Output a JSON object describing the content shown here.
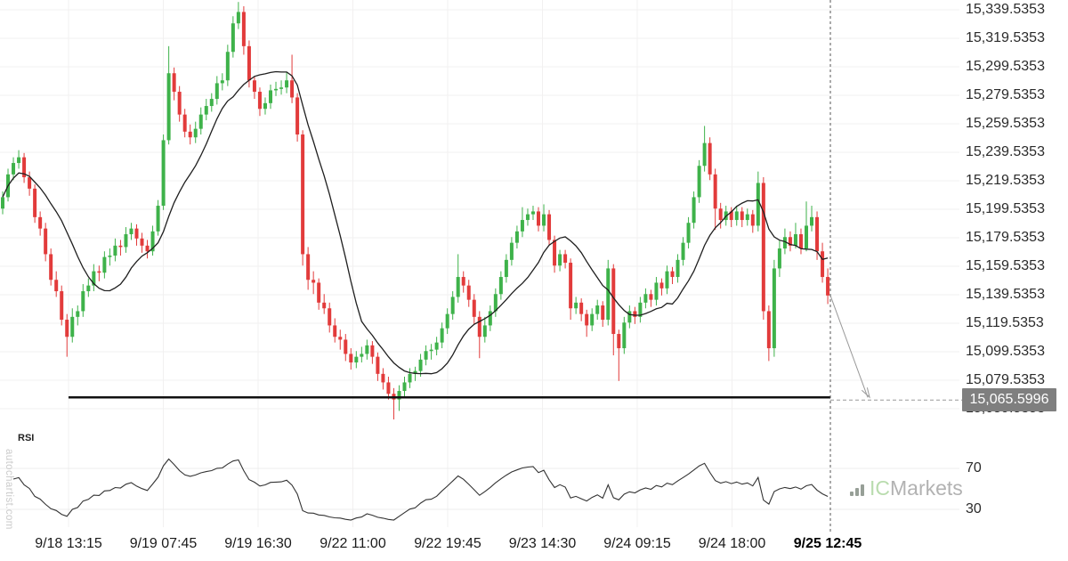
{
  "watermark": "autochartist.com",
  "brand": {
    "icon": "bar-chart-icon",
    "ic": "IC",
    "markets": "Markets"
  },
  "chart_data": {
    "type": "candlestick",
    "panels": [
      "price",
      "RSI"
    ],
    "y_axis": {
      "labels": [
        "15,339.5353",
        "15,319.5353",
        "15,299.5353",
        "15,279.5353",
        "15,259.5353",
        "15,239.5353",
        "15,219.5353",
        "15,199.5353",
        "15,179.5353",
        "15,159.5353",
        "15,139.5353",
        "15,119.5353",
        "15,099.5353",
        "15,079.5353",
        "15,059.5353"
      ],
      "top_value": 15339.5353,
      "step": 20
    },
    "x_axis": {
      "labels": [
        "9/18 13:15",
        "9/19 07:45",
        "9/19 16:30",
        "9/22 11:00",
        "9/22 19:45",
        "9/23 14:30",
        "9/24 09:15",
        "9/24 18:00",
        "9/25 12:45"
      ],
      "emphasized": "9/25 12:45"
    },
    "candles": [
      [
        15200,
        15212,
        15196,
        15208
      ],
      [
        15208,
        15228,
        15205,
        15224
      ],
      [
        15224,
        15236,
        15220,
        15232
      ],
      [
        15232,
        15241,
        15228,
        15236
      ],
      [
        15236,
        15239,
        15218,
        15222
      ],
      [
        15222,
        15226,
        15209,
        15214
      ],
      [
        15214,
        15217,
        15190,
        15194
      ],
      [
        15194,
        15198,
        15181,
        15186
      ],
      [
        15186,
        15190,
        15163,
        15168
      ],
      [
        15168,
        15172,
        15146,
        15150
      ],
      [
        15150,
        15156,
        15138,
        15142
      ],
      [
        15142,
        15146,
        15118,
        15122
      ],
      [
        15122,
        15126,
        15096,
        15110
      ],
      [
        15110,
        15130,
        15106,
        15124
      ],
      [
        15124,
        15132,
        15118,
        15128
      ],
      [
        15128,
        15147,
        15124,
        15142
      ],
      [
        15142,
        15151,
        15138,
        15146
      ],
      [
        15146,
        15161,
        15142,
        15156
      ],
      [
        15156,
        15160,
        15149,
        15155
      ],
      [
        15155,
        15170,
        15151,
        15166
      ],
      [
        15166,
        15172,
        15160,
        15167
      ],
      [
        15167,
        15179,
        15163,
        15174
      ],
      [
        15174,
        15178,
        15167,
        15173
      ],
      [
        15173,
        15187,
        15169,
        15182
      ],
      [
        15182,
        15190,
        15178,
        15186
      ],
      [
        15186,
        15189,
        15174,
        15179
      ],
      [
        15179,
        15183,
        15169,
        15174
      ],
      [
        15174,
        15178,
        15165,
        15170
      ],
      [
        15170,
        15188,
        15167,
        15184
      ],
      [
        15184,
        15206,
        15181,
        15202
      ],
      [
        15202,
        15252,
        15199,
        15248
      ],
      [
        15248,
        15314,
        15245,
        15295
      ],
      [
        15295,
        15299,
        15276,
        15282
      ],
      [
        15282,
        15286,
        15261,
        15266
      ],
      [
        15266,
        15270,
        15250,
        15254
      ],
      [
        15254,
        15259,
        15245,
        15250
      ],
      [
        15250,
        15261,
        15246,
        15256
      ],
      [
        15256,
        15271,
        15252,
        15266
      ],
      [
        15266,
        15277,
        15262,
        15272
      ],
      [
        15272,
        15281,
        15268,
        15277
      ],
      [
        15277,
        15293,
        15273,
        15288
      ],
      [
        15288,
        15295,
        15283,
        15290
      ],
      [
        15290,
        15315,
        15286,
        15310
      ],
      [
        15310,
        15335,
        15306,
        15330
      ],
      [
        15330,
        15345,
        15326,
        15338
      ],
      [
        15338,
        15342,
        15308,
        15314
      ],
      [
        15314,
        15318,
        15285,
        15290
      ],
      [
        15290,
        15293,
        15277,
        15282
      ],
      [
        15282,
        15285,
        15265,
        15270
      ],
      [
        15270,
        15278,
        15266,
        15274
      ],
      [
        15274,
        15287,
        15270,
        15283
      ],
      [
        15283,
        15289,
        15279,
        15284
      ],
      [
        15284,
        15290,
        15280,
        15285
      ],
      [
        15285,
        15296,
        15281,
        15290
      ],
      [
        15290,
        15308,
        15274,
        15278
      ],
      [
        15278,
        15281,
        15247,
        15252
      ],
      [
        15252,
        15255,
        15160,
        15168
      ],
      [
        15168,
        15173,
        15143,
        15150
      ],
      [
        15150,
        15156,
        15140,
        15148
      ],
      [
        15148,
        15151,
        15129,
        15134
      ],
      [
        15134,
        15140,
        15126,
        15130
      ],
      [
        15130,
        15134,
        15113,
        15118
      ],
      [
        15118,
        15123,
        15106,
        15110
      ],
      [
        15110,
        15115,
        15101,
        15108
      ],
      [
        15108,
        15112,
        15093,
        15098
      ],
      [
        15098,
        15102,
        15087,
        15092
      ],
      [
        15092,
        15100,
        15088,
        15096
      ],
      [
        15096,
        15103,
        15092,
        15098
      ],
      [
        15098,
        15108,
        15094,
        15104
      ],
      [
        15104,
        15107,
        15091,
        15096
      ],
      [
        15096,
        15099,
        15079,
        15084
      ],
      [
        15084,
        15088,
        15073,
        15078
      ],
      [
        15078,
        15082,
        15066,
        15070
      ],
      [
        15070,
        15074,
        15052,
        15066
      ],
      [
        15066,
        15076,
        15058,
        15072
      ],
      [
        15072,
        15082,
        15068,
        15078
      ],
      [
        15078,
        15088,
        15074,
        15084
      ],
      [
        15084,
        15089,
        15079,
        15086
      ],
      [
        15086,
        15098,
        15082,
        15094
      ],
      [
        15094,
        15104,
        15090,
        15100
      ],
      [
        15100,
        15105,
        15094,
        15101
      ],
      [
        15101,
        15110,
        15097,
        15106
      ],
      [
        15106,
        15120,
        15102,
        15116
      ],
      [
        15116,
        15130,
        15112,
        15126
      ],
      [
        15126,
        15142,
        15122,
        15138
      ],
      [
        15138,
        15168,
        15134,
        15152
      ],
      [
        15152,
        15156,
        15141,
        15146
      ],
      [
        15146,
        15150,
        15131,
        15136
      ],
      [
        15136,
        15140,
        15119,
        15124
      ],
      [
        15124,
        15128,
        15095,
        15110
      ],
      [
        15110,
        15124,
        15106,
        15118
      ],
      [
        15118,
        15132,
        15114,
        15128
      ],
      [
        15128,
        15144,
        15124,
        15140
      ],
      [
        15140,
        15156,
        15136,
        15152
      ],
      [
        15152,
        15168,
        15148,
        15164
      ],
      [
        15164,
        15180,
        15160,
        15176
      ],
      [
        15176,
        15188,
        15172,
        15184
      ],
      [
        15184,
        15201,
        15180,
        15192
      ],
      [
        15192,
        15200,
        15188,
        15196
      ],
      [
        15196,
        15202,
        15192,
        15198
      ],
      [
        15198,
        15201,
        15184,
        15188
      ],
      [
        15188,
        15203,
        15184,
        15196
      ],
      [
        15196,
        15199,
        15174,
        15178
      ],
      [
        15178,
        15181,
        15155,
        15160
      ],
      [
        15160,
        15171,
        15156,
        15168
      ],
      [
        15168,
        15171,
        15158,
        15162
      ],
      [
        15162,
        15165,
        15122,
        15130
      ],
      [
        15130,
        15138,
        15126,
        15134
      ],
      [
        15134,
        15137,
        15121,
        15126
      ],
      [
        15126,
        15129,
        15110,
        15118
      ],
      [
        15118,
        15130,
        15114,
        15126
      ],
      [
        15126,
        15136,
        15122,
        15132
      ],
      [
        15132,
        15135,
        15117,
        15122
      ],
      [
        15122,
        15164,
        15118,
        15158
      ],
      [
        15158,
        15161,
        15097,
        15112
      ],
      [
        15112,
        15115,
        15079,
        15102
      ],
      [
        15102,
        15124,
        15098,
        15120
      ],
      [
        15120,
        15132,
        15116,
        15128
      ],
      [
        15128,
        15131,
        15119,
        15124
      ],
      [
        15124,
        15138,
        15120,
        15134
      ],
      [
        15134,
        15144,
        15130,
        15140
      ],
      [
        15140,
        15143,
        15131,
        15136
      ],
      [
        15136,
        15152,
        15132,
        15148
      ],
      [
        15148,
        15151,
        15139,
        15144
      ],
      [
        15144,
        15160,
        15140,
        15156
      ],
      [
        15156,
        15159,
        15147,
        15152
      ],
      [
        15152,
        15168,
        15148,
        15164
      ],
      [
        15164,
        15180,
        15160,
        15176
      ],
      [
        15176,
        15194,
        15172,
        15190
      ],
      [
        15190,
        15212,
        15186,
        15208
      ],
      [
        15208,
        15234,
        15204,
        15230
      ],
      [
        15230,
        15258,
        15226,
        15246
      ],
      [
        15246,
        15250,
        15220,
        15224
      ],
      [
        15224,
        15228,
        15185,
        15200
      ],
      [
        15200,
        15204,
        15186,
        15192
      ],
      [
        15192,
        15202,
        15188,
        15198
      ],
      [
        15198,
        15201,
        15187,
        15192
      ],
      [
        15192,
        15202,
        15188,
        15198
      ],
      [
        15198,
        15201,
        15187,
        15192
      ],
      [
        15192,
        15200,
        15188,
        15196
      ],
      [
        15196,
        15199,
        15183,
        15188
      ],
      [
        15188,
        15226,
        15184,
        15218
      ],
      [
        15218,
        15222,
        15122,
        15128
      ],
      [
        15128,
        15132,
        15093,
        15102
      ],
      [
        15102,
        15164,
        15096,
        15158
      ],
      [
        15158,
        15178,
        15152,
        15172
      ],
      [
        15172,
        15186,
        15168,
        15180
      ],
      [
        15180,
        15184,
        15170,
        15174
      ],
      [
        15174,
        15190,
        15172,
        15182
      ],
      [
        15182,
        15186,
        15168,
        15172
      ],
      [
        15172,
        15205,
        15170,
        15188
      ],
      [
        15188,
        15202,
        15184,
        15194
      ],
      [
        15194,
        15198,
        15164,
        15170
      ],
      [
        15170,
        15176,
        15148,
        15152
      ],
      [
        15152,
        15158,
        15133,
        15139
      ]
    ],
    "overlays": {
      "ma_period": 12,
      "support_line": {
        "price": 15067.5
      },
      "forecast": {
        "price": 15065.5996,
        "label": "15,065.5996"
      }
    },
    "rsi": {
      "title": "RSI",
      "period": 14,
      "axis_labels": [
        "70",
        "30"
      ],
      "levels": [
        70,
        30
      ]
    },
    "colors": {
      "up": "#3eb24a",
      "down": "#e23b3b",
      "ma": "#1f1f1f",
      "support": "#111111",
      "guide": "#999999",
      "cursor": "#555555",
      "grid": "#f2f0f0",
      "rsi_line": "#333333",
      "badge_bg": "#7f7f7f",
      "badge_text": "#ffffff"
    }
  }
}
